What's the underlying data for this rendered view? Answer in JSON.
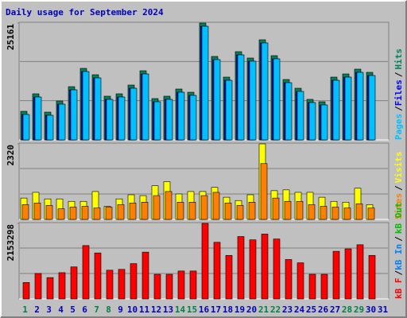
{
  "chart_data": {
    "type": "bar",
    "title": "Daily usage for September 2024",
    "categories": [
      "1",
      "2",
      "3",
      "4",
      "5",
      "6",
      "7",
      "8",
      "9",
      "10",
      "11",
      "12",
      "13",
      "14",
      "15",
      "16",
      "17",
      "18",
      "19",
      "20",
      "21",
      "22",
      "23",
      "24",
      "25",
      "26",
      "27",
      "28",
      "29",
      "30",
      "31"
    ],
    "weekends": [
      1,
      7,
      8,
      14,
      15,
      21,
      22,
      28,
      29
    ],
    "weekday_color": "#0000c0",
    "weekend_color": "#00804a",
    "legend_separator": "/",
    "panels": [
      {
        "ylim": [
          0,
          25161
        ],
        "yticks": [
          25161
        ],
        "series": [
          {
            "name": "Hits",
            "color": "#00805c",
            "values": [
              6162,
              9927,
              5991,
              8387,
              11468,
              15405,
              14035,
              9414,
              9927,
              11810,
              14891,
              8900,
              9414,
              10955,
              10270,
              25161,
              17972,
              13522,
              18999,
              17630,
              21566,
              18143,
              13008,
              11126,
              8729,
              8216,
              13522,
              14206,
              15233,
              14549,
              null
            ]
          },
          {
            "name": "Files",
            "color": "#0000ff",
            "values": [
              5477,
              9242,
              5306,
              7702,
              10783,
              14720,
              13350,
              8729,
              9242,
              11125,
              14206,
              8215,
              8729,
              10270,
              9585,
              24476,
              17287,
              12837,
              18314,
              16945,
              20881,
              17458,
              12323,
              10441,
              8044,
              7531,
              12837,
              13521,
              14548,
              13864,
              null
            ]
          },
          {
            "name": "Pages",
            "color": "#00c0ff",
            "values": [
              5477,
              9242,
              5306,
              7702,
              10783,
              14720,
              13350,
              8729,
              9242,
              11125,
              14206,
              8215,
              8729,
              10270,
              9585,
              24476,
              17287,
              12837,
              18314,
              16945,
              20881,
              17458,
              12323,
              10441,
              8044,
              7531,
              12837,
              13521,
              14548,
              13864,
              null
            ]
          }
        ]
      },
      {
        "ylim": [
          0,
          2320
        ],
        "yticks": [
          2320
        ],
        "series": [
          {
            "name": "Visits",
            "color": "#ffff00",
            "values": [
              656,
              832,
              630,
              630,
              555,
              555,
              857,
              403,
              630,
              757,
              731,
              1034,
              1160,
              782,
              857,
              857,
              983,
              681,
              580,
              757,
              2320,
              883,
              908,
              832,
              832,
              681,
              555,
              530,
              958,
              454,
              null
            ]
          },
          {
            "name": "Sites",
            "color": "#ff8000",
            "values": [
              454,
              504,
              429,
              328,
              378,
              403,
              353,
              378,
              454,
              504,
              530,
              731,
              857,
              530,
              530,
              731,
              832,
              504,
              429,
              530,
              1715,
              656,
              555,
              555,
              454,
              403,
              378,
              353,
              479,
              353,
              null
            ]
          }
        ]
      },
      {
        "ylim": [
          0,
          2153298
        ],
        "yticks": [
          2153298
        ],
        "series": [
          {
            "name": "kB Out",
            "color": "#00c000",
            "values": [
              0,
              0,
              0,
              0,
              0,
              0,
              0,
              0,
              0,
              0,
              0,
              0,
              0,
              0,
              0,
              0,
              0,
              0,
              0,
              0,
              0,
              0,
              0,
              0,
              0,
              0,
              0,
              0,
              0,
              0,
              null
            ]
          },
          {
            "name": "kB In",
            "color": "#0080ff",
            "values": [
              0,
              0,
              0,
              0,
              0,
              0,
              0,
              0,
              0,
              0,
              0,
              0,
              0,
              0,
              0,
              0,
              0,
              0,
              0,
              0,
              0,
              0,
              0,
              0,
              0,
              0,
              0,
              0,
              0,
              0,
              null
            ]
          },
          {
            "name": "kB F",
            "color": "#ff0000",
            "values": [
              468108,
              725570,
              608540,
              748975,
              912831,
              1521363,
              1310703,
              819190,
              842595,
              1006437,
              1334108,
              702162,
              702162,
              795786,
              795786,
              2153298,
              1614982,
              1240486,
              1778812,
              1685189,
              1849029,
              1708594,
              1123459,
              1029842,
              702162,
              702162,
              1357514,
              1427729,
              1544770,
              1240486,
              null
            ]
          }
        ]
      }
    ]
  }
}
